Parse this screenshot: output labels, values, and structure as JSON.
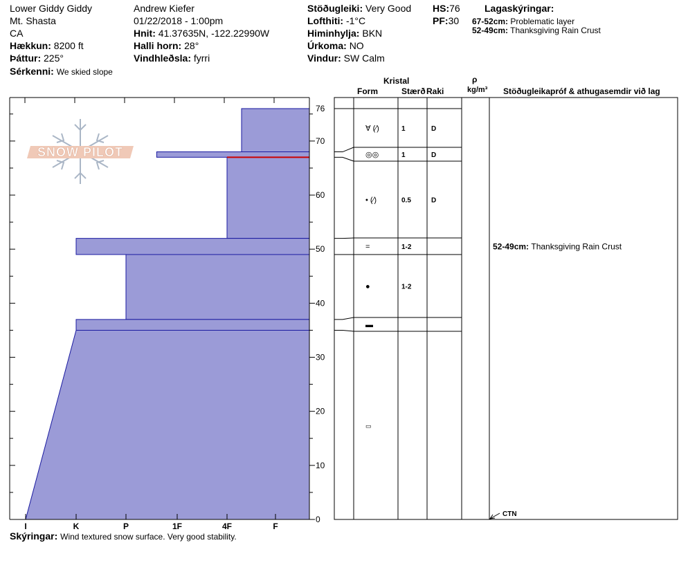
{
  "header": {
    "location": "Lower Giddy Giddy",
    "mountain": "Mt. Shasta",
    "state": "CA",
    "elevation_label": "Hækkun:",
    "elevation": "8200 ft",
    "aspect_label": "Þáttur:",
    "aspect": "225°",
    "features_label": "Sérkenni:",
    "features": "We skied slope",
    "observer": "Andrew Kiefer",
    "datetime": "01/22/2018 - 1:00pm",
    "coords_label": "Hnit:",
    "coords": "41.37635N, -122.22990W",
    "slope_label": "Halli horn:",
    "slope": "28°",
    "wind_loading_label": "Vindhleðsla:",
    "wind_loading": "fyrri",
    "stability_label": "Stöðugleiki:",
    "stability": "Very Good",
    "air_temp_label": "Lofthiti:",
    "air_temp": "-1°C",
    "sky_label": "Himinhylja:",
    "sky": "BKN",
    "precip_label": "Úrkoma:",
    "precip": "NO",
    "wind_label": "Vindur:",
    "wind": "SW Calm",
    "hs_label": "HS:",
    "hs": "76",
    "pf_label": "PF:",
    "pf": "30",
    "layers_title": "Lagaskýringar:",
    "layer_notes": [
      {
        "range": "67-52cm:",
        "text": "Problematic layer"
      },
      {
        "range": "52-49cm:",
        "text": "Thanksgiving Rain Crust"
      }
    ]
  },
  "logo": {
    "text": "SNOW PILOT"
  },
  "table_headers": {
    "crystal": "Kristal",
    "form": "Form",
    "size": "Stærð",
    "moisture": "Raki",
    "density_symbol": "ρ",
    "density_unit": "kg/m³",
    "comments": "Stöðugleikapróf & athugasemdir við lag"
  },
  "footer": {
    "label": "Skýringar:",
    "text": "Wind textured snow surface. Very good stability."
  },
  "colors": {
    "layer_fill": "#9b9bd7",
    "layer_stroke": "#1a1aa0",
    "problem_line": "#cc0000",
    "logo_fill": "#f0c9b7"
  },
  "chart_data": {
    "type": "snow-profile",
    "hardness_scale": [
      "I",
      "K",
      "P",
      "1F",
      "4F",
      "F"
    ],
    "depth_ticks": [
      0,
      10,
      20,
      30,
      40,
      50,
      60,
      70,
      76
    ],
    "depth_range": [
      0,
      76
    ],
    "layers": [
      {
        "top": 76,
        "bottom": 68,
        "hardness": 4.3,
        "form": "∀ (⁄)",
        "size": "1",
        "moisture": "D"
      },
      {
        "top": 68,
        "bottom": 67,
        "hardness": 2.6,
        "form": "◎◎",
        "size": "1",
        "moisture": "D"
      },
      {
        "top": 67,
        "bottom": 52,
        "hardness": 4.0,
        "form": "• (⁄)",
        "size": "0.5",
        "moisture": "D"
      },
      {
        "top": 52,
        "bottom": 49,
        "hardness": 1.0,
        "form": "=",
        "size": "1-2",
        "moisture": ""
      },
      {
        "top": 49,
        "bottom": 37,
        "hardness": 2.0,
        "form": "●",
        "size": "1-2",
        "moisture": ""
      },
      {
        "top": 37,
        "bottom": 35,
        "hardness": 1.0,
        "form": "▬",
        "size": "",
        "moisture": ""
      },
      {
        "top": 35,
        "bottom": 0,
        "hardness": 1.0,
        "hardness_bottom": 0.0,
        "form": "▭",
        "size": "",
        "moisture": ""
      }
    ],
    "problem_depth": 67,
    "comments": [
      {
        "depth": 50.5,
        "label": "52-49cm:",
        "text": "Thanksgiving Rain Crust"
      }
    ],
    "tests": [
      {
        "depth": 0,
        "label": "CTN"
      }
    ]
  }
}
